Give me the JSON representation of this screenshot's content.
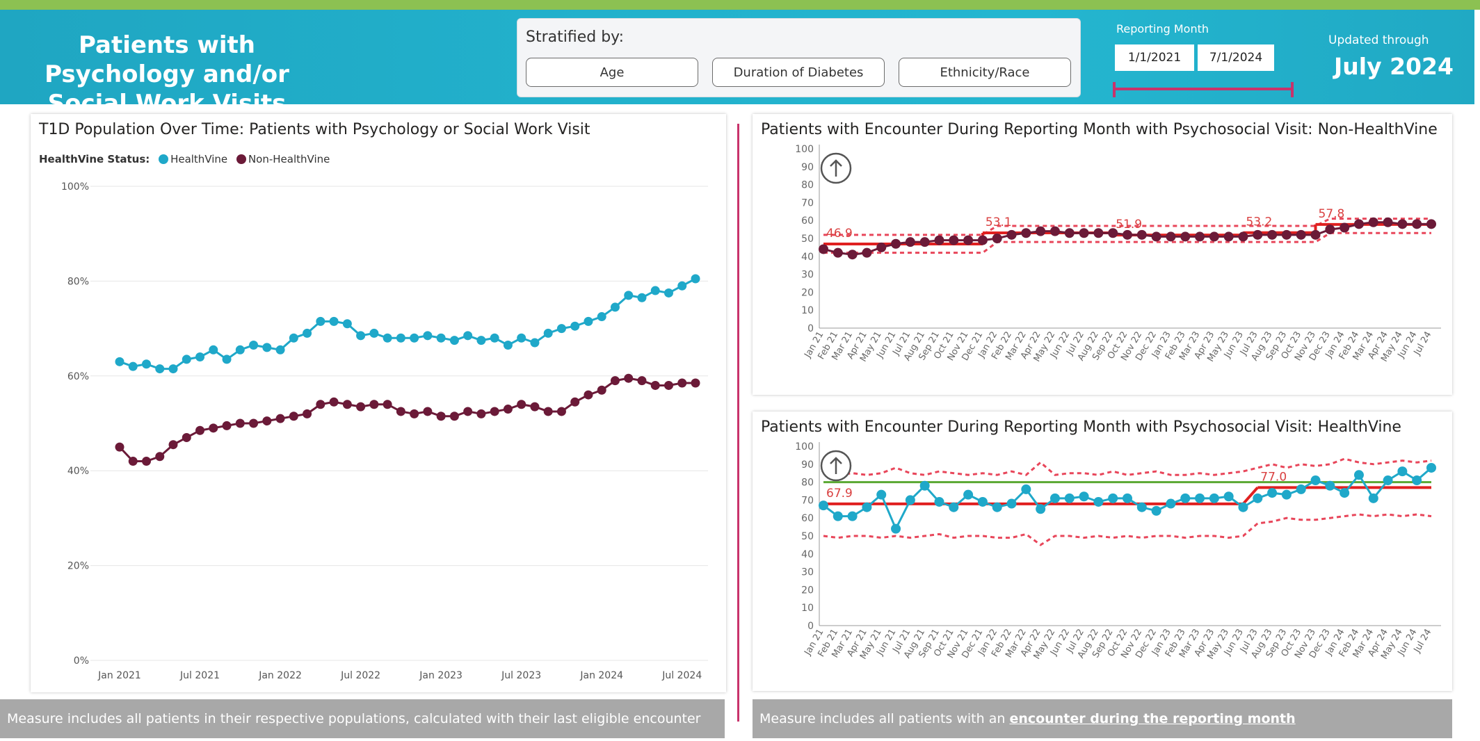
{
  "header": {
    "title": "Patients with Psychology and/or Social Work Visits (%)",
    "stratified_label": "Stratified by:",
    "strat_buttons": [
      "Age",
      "Duration of Diabetes",
      "Ethnicity/Race"
    ],
    "reporting_label": "Reporting Month",
    "start_date": "1/1/2021",
    "end_date": "7/1/2024",
    "updated_label": "Updated through",
    "updated_value": "July 2024"
  },
  "colors": {
    "healthvine": "#1fa8c9",
    "non_healthvine": "#6b1a38",
    "control_center": "#e02020",
    "control_limit": "#e8465a",
    "target": "#5aa832",
    "accent": "#c8336b"
  },
  "icons": {
    "upward_trend": "arrow-up-circle-icon"
  },
  "left_panel": {
    "title": "T1D Population Over Time: Patients with Psychology or Social Work Visit",
    "legend_label": "HealthVine Status:",
    "footer": "Measure includes all patients in their respective populations, calculated with their last eligible encounter"
  },
  "right_panel": {
    "footer_prefix": "Measure includes all patients with an ",
    "footer_link": "encounter during the reporting month"
  },
  "chart_data": [
    {
      "type": "line",
      "title": "T1D Population Over Time: Patients with Psychology or Social Work Visit",
      "legend_title": "HealthVine Status:",
      "y_ticks": [
        "0%",
        "20%",
        "40%",
        "60%",
        "80%",
        "100%"
      ],
      "ylim": [
        0,
        100
      ],
      "x_tick_labels": [
        "Jan 2021",
        "Jul 2021",
        "Jan 2022",
        "Jul 2022",
        "Jan 2023",
        "Jul 2023",
        "Jan 2024",
        "Jul 2024"
      ],
      "x_start": "2021-01",
      "x_end": "2024-07",
      "grid": true,
      "legend_position": "top-left",
      "series": [
        {
          "name": "HealthVine",
          "color": "#1fa8c9",
          "values": [
            63,
            62,
            62.5,
            61.5,
            61.5,
            63.5,
            64,
            65.5,
            63.5,
            65.5,
            66.5,
            66,
            65.5,
            68,
            69,
            71.5,
            71.5,
            71,
            68.5,
            69,
            68,
            68,
            68,
            68.5,
            68,
            67.5,
            68.5,
            67.5,
            68,
            66.5,
            68,
            67,
            69,
            70,
            70.5,
            71.5,
            72.5,
            74.5,
            77,
            76.5,
            78,
            77.5,
            79,
            80.5
          ]
        },
        {
          "name": "Non-HealthVine",
          "color": "#6b1a38",
          "values": [
            45,
            42,
            42,
            43,
            45.5,
            47,
            48.5,
            49,
            49.5,
            50,
            50,
            50.5,
            51,
            51.5,
            52,
            54,
            54.5,
            54,
            53.5,
            54,
            54,
            52.5,
            52,
            52.5,
            51.5,
            51.5,
            52.5,
            52,
            52.5,
            53,
            54,
            53.5,
            52.5,
            52.5,
            54.5,
            56,
            57,
            59,
            59.5,
            59,
            58,
            58,
            58.5,
            58.5
          ]
        }
      ]
    },
    {
      "type": "line",
      "title": "Patients with Encounter During Reporting Month with Psychosocial Visit: Non-HealthVine",
      "ylim": [
        0,
        100
      ],
      "y_ticks": [
        0,
        10,
        20,
        30,
        40,
        50,
        60,
        70,
        80,
        90,
        100
      ],
      "categories": [
        "Jan 21",
        "Feb 21",
        "Mar 21",
        "Apr 21",
        "May 21",
        "Jun 21",
        "Jul 21",
        "Aug 21",
        "Sep 21",
        "Oct 21",
        "Nov 21",
        "Dec 21",
        "Jan 22",
        "Feb 22",
        "Mar 22",
        "Apr 22",
        "May 22",
        "Jun 22",
        "Jul 22",
        "Aug 22",
        "Sep 22",
        "Oct 22",
        "Nov 22",
        "Dec 22",
        "Jan 23",
        "Feb 23",
        "Mar 23",
        "Apr 23",
        "May 23",
        "Jun 23",
        "Jul 23",
        "Aug 23",
        "Sep 23",
        "Oct 23",
        "Nov 23",
        "Dec 23",
        "Jan 24",
        "Feb 24",
        "Mar 24",
        "Apr 24",
        "May 24",
        "Jun 24",
        "Jul 24"
      ],
      "series": [
        {
          "name": "",
          "color": "#6b1a38",
          "values": [
            44,
            42,
            41,
            42,
            45,
            47,
            48,
            48,
            49,
            49,
            49,
            49,
            50,
            52,
            53,
            54,
            54,
            53,
            53,
            53,
            53,
            52,
            52,
            51,
            51,
            51,
            51,
            51,
            51,
            51,
            52,
            52,
            52,
            52,
            52,
            55,
            56,
            58,
            59,
            59,
            58,
            58,
            58
          ]
        }
      ],
      "center_segments": [
        {
          "from": 0,
          "to": 11,
          "value": 46.9,
          "label": "46.9"
        },
        {
          "from": 11,
          "to": 20,
          "value": 53.1,
          "label": "53.1"
        },
        {
          "from": 20,
          "to": 29,
          "value": 51.9,
          "label": "51.9"
        },
        {
          "from": 29,
          "to": 34,
          "value": 53.2,
          "label": "53.2"
        },
        {
          "from": 34,
          "to": 42,
          "value": 57.8,
          "label": "57.8"
        }
      ],
      "upper_limit": [
        52,
        52,
        52,
        52,
        52,
        52,
        52,
        52,
        52,
        52,
        52,
        52,
        57,
        57,
        57,
        57,
        57,
        57,
        57,
        57,
        57,
        57,
        57,
        57,
        57,
        57,
        57,
        57,
        57,
        57,
        57,
        57,
        57,
        57,
        57,
        61,
        61,
        61,
        61,
        61,
        61,
        61,
        61
      ],
      "lower_limit": [
        42,
        42,
        42,
        42,
        42,
        42,
        42,
        42,
        42,
        42,
        42,
        42,
        48,
        48,
        48,
        48,
        48,
        48,
        48,
        48,
        48,
        48,
        48,
        48,
        48,
        48,
        48,
        48,
        48,
        48,
        48,
        48,
        48,
        48,
        48,
        53,
        53,
        53,
        53,
        53,
        53,
        53,
        53
      ]
    },
    {
      "type": "line",
      "title": "Patients with Encounter During Reporting Month with Psychosocial Visit: HealthVine",
      "ylim": [
        0,
        100
      ],
      "y_ticks": [
        0,
        10,
        20,
        30,
        40,
        50,
        60,
        70,
        80,
        90,
        100
      ],
      "categories": [
        "Jan 21",
        "Feb 21",
        "Mar 21",
        "Apr 21",
        "May 21",
        "Jun 21",
        "Jul 21",
        "Aug 21",
        "Sep 21",
        "Oct 21",
        "Nov 21",
        "Dec 21",
        "Jan 22",
        "Feb 22",
        "Mar 22",
        "Apr 22",
        "May 22",
        "Jun 22",
        "Jul 22",
        "Aug 22",
        "Sep 22",
        "Oct 22",
        "Nov 22",
        "Dec 22",
        "Jan 23",
        "Feb 23",
        "Mar 23",
        "Apr 23",
        "May 23",
        "Jun 23",
        "Jul 23",
        "Aug 23",
        "Sep 23",
        "Oct 23",
        "Nov 23",
        "Dec 23",
        "Jan 24",
        "Feb 24",
        "Mar 24",
        "Apr 24",
        "May 24",
        "Jun 24",
        "Jul 24"
      ],
      "series": [
        {
          "name": "",
          "color": "#1fa8c9",
          "values": [
            67,
            61,
            61,
            66,
            73,
            54,
            70,
            78,
            69,
            66,
            73,
            69,
            66,
            68,
            76,
            65,
            71,
            71,
            72,
            69,
            71,
            71,
            66,
            64,
            68,
            71,
            71,
            71,
            72,
            66,
            71,
            74,
            73,
            76,
            81,
            78,
            74,
            84,
            71,
            81,
            86,
            81,
            88
          ]
        }
      ],
      "target": 80,
      "center_segments": [
        {
          "from": 0,
          "to": 29,
          "value": 67.9,
          "label": "67.9"
        },
        {
          "from": 30,
          "to": 42,
          "value": 77.0,
          "label": "77.0"
        }
      ],
      "upper_limit": [
        86,
        84,
        85,
        84,
        85,
        88,
        85,
        84,
        86,
        85,
        84,
        85,
        84,
        86,
        84,
        91,
        84,
        85,
        85,
        84,
        86,
        84,
        85,
        86,
        84,
        84,
        85,
        84,
        85,
        86,
        88,
        90,
        88,
        90,
        89,
        90,
        93,
        91,
        90,
        91,
        92,
        91,
        92
      ],
      "lower_limit": [
        50,
        49,
        50,
        50,
        49,
        50,
        49,
        50,
        51,
        49,
        50,
        50,
        49,
        49,
        51,
        45,
        50,
        50,
        49,
        50,
        49,
        50,
        49,
        50,
        50,
        49,
        50,
        50,
        49,
        50,
        57,
        58,
        60,
        59,
        59,
        60,
        61,
        62,
        61,
        62,
        61,
        62,
        61
      ]
    }
  ]
}
